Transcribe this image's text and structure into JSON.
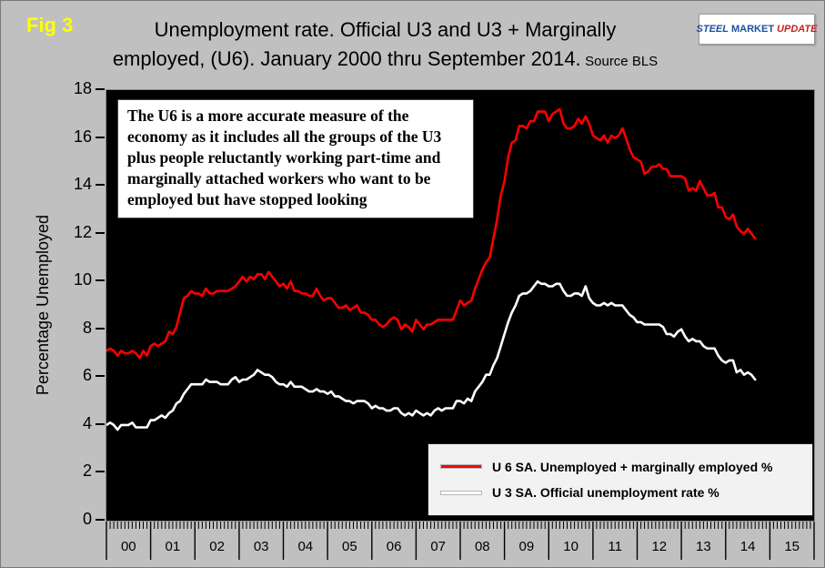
{
  "page": {
    "background": "#c0c0c0",
    "plot_background": "#000000"
  },
  "header": {
    "fig_label": "Fig 3",
    "title_line1": "Unemployment rate. Official U3 and U3 + Marginally",
    "title_line2": "employed, (U6). January 2000 thru September 2014.",
    "source": "Source BLS",
    "logo": {
      "word1": "STEEL",
      "word2": "MARKET",
      "word3": "UPDATE"
    }
  },
  "y_axis_label": "Percentage Unemployed",
  "annotation": "The U6 is a more accurate measure of the economy as it includes all the groups of the U3 plus people reluctantly working part-time and marginally attached workers who want to be employed but have stopped looking",
  "legend": [
    {
      "label": "U 6 SA. Unemployed + marginally employed %",
      "color": "#ff0000"
    },
    {
      "label": "U 3 SA. Official unemployment rate %",
      "color": "#ffffff"
    }
  ],
  "chart_data": {
    "type": "line",
    "title": "Unemployment rate. Official U3 and U3 + Marginally employed, (U6). January 2000 thru September 2014.",
    "source": "BLS",
    "xlabel": "",
    "ylabel": "Percentage Unemployed",
    "ylim": [
      0,
      18
    ],
    "y_ticks": [
      0,
      2,
      4,
      6,
      8,
      10,
      12,
      14,
      16,
      18
    ],
    "grid": false,
    "legend_position": "inside bottom-right",
    "x_start": "2000-01",
    "x_data_end": "2014-09",
    "x_axis_end": "2015-12",
    "x_total_months": 192,
    "x_year_labels": [
      "00",
      "01",
      "02",
      "03",
      "04",
      "05",
      "06",
      "07",
      "08",
      "09",
      "10",
      "11",
      "12",
      "13",
      "14",
      "15"
    ],
    "series": [
      {
        "name": "U 6 SA. Unemployed + marginally employed %",
        "color": "#ff0000",
        "values": [
          7.1,
          7.2,
          7.1,
          6.9,
          7.1,
          7.0,
          7.0,
          7.1,
          7.0,
          6.8,
          7.1,
          6.9,
          7.3,
          7.4,
          7.3,
          7.4,
          7.5,
          7.9,
          7.8,
          8.1,
          8.7,
          9.3,
          9.4,
          9.6,
          9.5,
          9.5,
          9.4,
          9.7,
          9.5,
          9.5,
          9.6,
          9.6,
          9.6,
          9.6,
          9.7,
          9.8,
          10.0,
          10.2,
          10.0,
          10.2,
          10.1,
          10.3,
          10.3,
          10.1,
          10.4,
          10.2,
          10.0,
          9.8,
          9.9,
          9.7,
          10.0,
          9.6,
          9.6,
          9.5,
          9.5,
          9.4,
          9.4,
          9.7,
          9.4,
          9.2,
          9.3,
          9.3,
          9.1,
          8.9,
          8.9,
          9.0,
          8.8,
          8.9,
          9.0,
          8.7,
          8.7,
          8.6,
          8.4,
          8.4,
          8.2,
          8.1,
          8.2,
          8.4,
          8.5,
          8.4,
          8.0,
          8.2,
          8.1,
          7.9,
          8.4,
          8.2,
          8.0,
          8.2,
          8.2,
          8.3,
          8.4,
          8.4,
          8.4,
          8.4,
          8.4,
          8.8,
          9.2,
          9.0,
          9.1,
          9.2,
          9.7,
          10.1,
          10.5,
          10.8,
          11.0,
          11.8,
          12.6,
          13.6,
          14.2,
          15.2,
          15.8,
          15.9,
          16.5,
          16.5,
          16.4,
          16.7,
          16.7,
          17.1,
          17.1,
          17.1,
          16.7,
          17.0,
          17.1,
          17.2,
          16.6,
          16.4,
          16.4,
          16.5,
          16.8,
          16.6,
          16.9,
          16.6,
          16.1,
          16.0,
          15.9,
          16.1,
          15.8,
          16.1,
          16.0,
          16.1,
          16.4,
          16.0,
          15.5,
          15.2,
          15.1,
          15.0,
          14.5,
          14.6,
          14.8,
          14.8,
          14.9,
          14.7,
          14.7,
          14.4,
          14.4,
          14.4,
          14.4,
          14.3,
          13.8,
          13.9,
          13.8,
          14.2,
          13.9,
          13.6,
          13.6,
          13.7,
          13.1,
          13.1,
          12.7,
          12.6,
          12.8,
          12.3,
          12.1,
          12.0,
          12.2,
          12.0,
          11.8
        ]
      },
      {
        "name": "U 3 SA. Official unemployment rate %",
        "color": "#ffffff",
        "values": [
          4.0,
          4.1,
          4.0,
          3.8,
          4.0,
          4.0,
          4.0,
          4.1,
          3.9,
          3.9,
          3.9,
          3.9,
          4.2,
          4.2,
          4.3,
          4.4,
          4.3,
          4.5,
          4.6,
          4.9,
          5.0,
          5.3,
          5.5,
          5.7,
          5.7,
          5.7,
          5.7,
          5.9,
          5.8,
          5.8,
          5.8,
          5.7,
          5.7,
          5.7,
          5.9,
          6.0,
          5.8,
          5.9,
          5.9,
          6.0,
          6.1,
          6.3,
          6.2,
          6.1,
          6.1,
          6.0,
          5.8,
          5.7,
          5.7,
          5.6,
          5.8,
          5.6,
          5.6,
          5.6,
          5.5,
          5.4,
          5.4,
          5.5,
          5.4,
          5.4,
          5.3,
          5.4,
          5.2,
          5.2,
          5.1,
          5.0,
          5.0,
          4.9,
          5.0,
          5.0,
          5.0,
          4.9,
          4.7,
          4.8,
          4.7,
          4.7,
          4.6,
          4.6,
          4.7,
          4.7,
          4.5,
          4.4,
          4.5,
          4.4,
          4.6,
          4.5,
          4.4,
          4.5,
          4.4,
          4.6,
          4.7,
          4.6,
          4.7,
          4.7,
          4.7,
          5.0,
          5.0,
          4.9,
          5.1,
          5.0,
          5.4,
          5.6,
          5.8,
          6.1,
          6.1,
          6.5,
          6.8,
          7.3,
          7.8,
          8.3,
          8.7,
          9.0,
          9.4,
          9.5,
          9.5,
          9.6,
          9.8,
          10.0,
          9.9,
          9.9,
          9.8,
          9.8,
          9.9,
          9.9,
          9.6,
          9.4,
          9.4,
          9.5,
          9.5,
          9.4,
          9.8,
          9.3,
          9.1,
          9.0,
          9.0,
          9.1,
          9.0,
          9.1,
          9.0,
          9.0,
          9.0,
          8.8,
          8.6,
          8.5,
          8.3,
          8.3,
          8.2,
          8.2,
          8.2,
          8.2,
          8.2,
          8.1,
          7.8,
          7.8,
          7.7,
          7.9,
          8.0,
          7.7,
          7.5,
          7.6,
          7.5,
          7.5,
          7.3,
          7.2,
          7.2,
          7.2,
          6.9,
          6.7,
          6.6,
          6.7,
          6.7,
          6.2,
          6.3,
          6.1,
          6.2,
          6.1,
          5.9
        ]
      }
    ]
  }
}
